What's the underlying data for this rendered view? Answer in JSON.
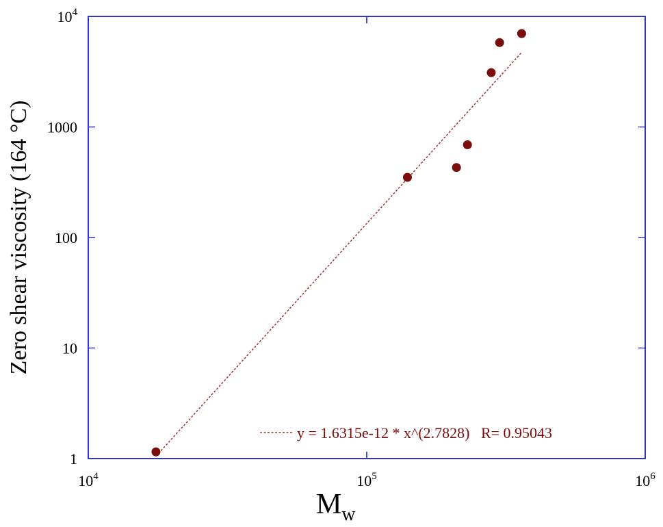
{
  "chart_data": {
    "type": "scatter",
    "xscale": "log",
    "yscale": "log",
    "xlim": [
      10000,
      1000000
    ],
    "ylim": [
      1,
      10000
    ],
    "xlabel": "M",
    "xlabel_sub": "w",
    "ylabel": "Zero shear viscosity (164 °C)",
    "x_ticks": [
      {
        "value": 10000,
        "base": "10",
        "exp": "4"
      },
      {
        "value": 100000,
        "base": "10",
        "exp": "5"
      },
      {
        "value": 1000000,
        "base": "10",
        "exp": "6"
      }
    ],
    "y_ticks": [
      {
        "value": 1,
        "label": "1"
      },
      {
        "value": 10,
        "label": "10"
      },
      {
        "value": 100,
        "label": "100"
      },
      {
        "value": 1000,
        "label": "1000"
      },
      {
        "value": 10000,
        "base": "10",
        "exp": "4"
      }
    ],
    "points": [
      {
        "x": 17500,
        "y": 1.15
      },
      {
        "x": 140000,
        "y": 350
      },
      {
        "x": 210000,
        "y": 430
      },
      {
        "x": 230000,
        "y": 690
      },
      {
        "x": 280000,
        "y": 3100
      },
      {
        "x": 300000,
        "y": 5800
      },
      {
        "x": 360000,
        "y": 7000
      }
    ],
    "fit": {
      "coefficient": 1.6315e-12,
      "exponent": 2.7828,
      "x_range": [
        17500,
        360000
      ],
      "legend_text": "y = 1.6315e-12 * x^(2.7828)   R= 0.95043"
    },
    "colors": {
      "points": "#7b0c0c",
      "fit": "#a0302a",
      "frame": "#3333cc"
    },
    "grid": false,
    "legend_position": "bottom-right"
  }
}
